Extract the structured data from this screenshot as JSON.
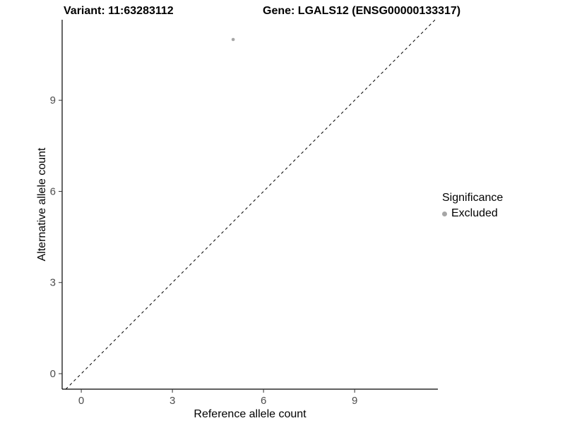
{
  "chart_data": {
    "type": "scatter",
    "title_left": "Variant: 11:63283112",
    "title_right": "Gene: LGALS12 (ENSG00000133317)",
    "xlabel": "Reference allele count",
    "ylabel": "Alternative allele count",
    "xlim": [
      -0.63,
      11.74
    ],
    "ylim": [
      -0.51,
      11.65
    ],
    "x_ticks": [
      0,
      3,
      6,
      9
    ],
    "y_ticks": [
      0,
      3,
      6,
      9
    ],
    "grid": false,
    "background": "#ffffff",
    "axis_color": "#000000",
    "tick_label_color": "#4d4d4d",
    "identity_line": {
      "type": "y=x",
      "style": "dashed",
      "color": "#000000"
    },
    "series": [
      {
        "name": "Excluded",
        "color": "#a6a6a6",
        "points": [
          {
            "x": 5,
            "y": 11
          }
        ]
      }
    ],
    "legend": {
      "title": "Significance",
      "position": "right",
      "entries": [
        {
          "label": "Excluded",
          "color": "#a6a6a6"
        }
      ]
    }
  }
}
